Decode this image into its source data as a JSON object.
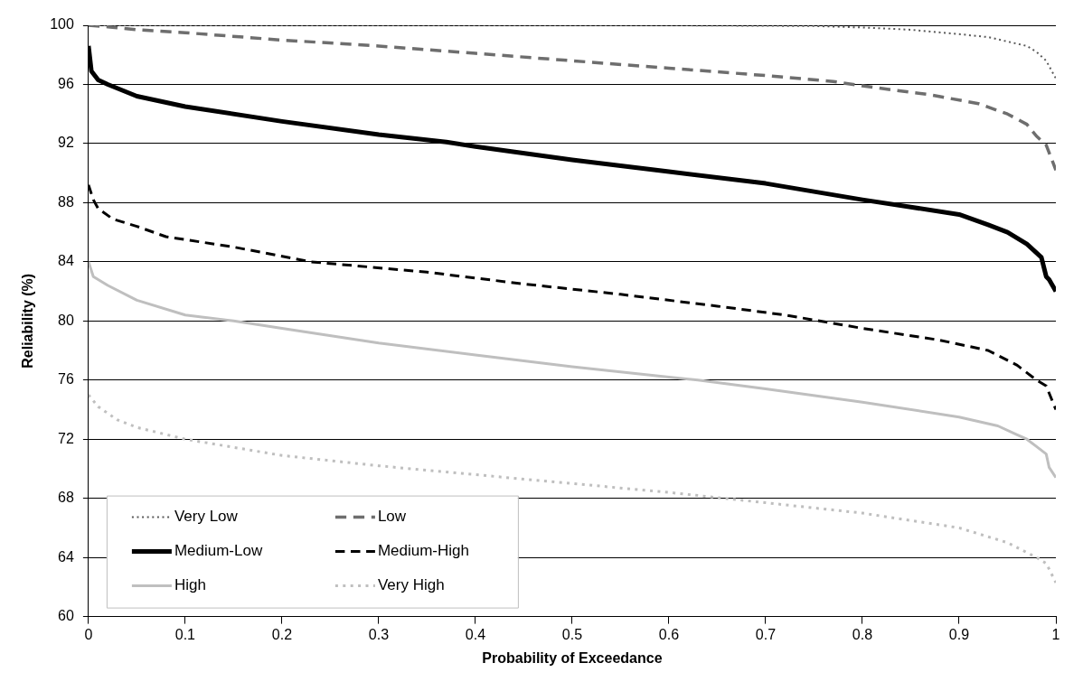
{
  "chart_data": {
    "type": "line",
    "xlabel": "Probability of Exceedance",
    "ylabel": "Reliability (%)",
    "xlim": [
      0,
      1
    ],
    "xticks": [
      0,
      0.1,
      0.2,
      0.3,
      0.4,
      0.5,
      0.6,
      0.7,
      0.8,
      0.9,
      1
    ],
    "ylim": [
      60,
      100
    ],
    "yticks": [
      60,
      64,
      68,
      72,
      76,
      80,
      84,
      88,
      92,
      96,
      100
    ],
    "grid": "y",
    "legend": "bottom left",
    "marker": "none",
    "series": [
      {
        "name": "Very Low",
        "color": "#595959",
        "line_style": "dotted",
        "x": [
          0,
          0.2,
          0.4,
          0.6,
          0.75,
          0.8,
          0.85,
          0.9,
          0.93,
          0.95,
          0.97,
          0.98,
          0.99,
          1
        ],
        "values": [
          100,
          100,
          100,
          100,
          99.95,
          99.85,
          99.7,
          99.4,
          99.2,
          98.9,
          98.6,
          98.2,
          97.6,
          96.4
        ]
      },
      {
        "name": "Low",
        "color": "#6e6e6e",
        "line_style": "dashed",
        "x": [
          0,
          0.02,
          0.05,
          0.1,
          0.2,
          0.3,
          0.4,
          0.5,
          0.6,
          0.7,
          0.77,
          0.8,
          0.87,
          0.92,
          0.95,
          0.97,
          0.98,
          0.99,
          1
        ],
        "values": [
          100,
          99.9,
          99.7,
          99.5,
          99.0,
          98.6,
          98.1,
          97.6,
          97.1,
          96.6,
          96.2,
          95.9,
          95.3,
          94.7,
          94.0,
          93.3,
          92.5,
          91.9,
          90.2
        ]
      },
      {
        "name": "Medium-Low",
        "color": "#000000",
        "line_style": "solid",
        "x": [
          0,
          0.003,
          0.01,
          0.02,
          0.05,
          0.1,
          0.2,
          0.3,
          0.37,
          0.4,
          0.5,
          0.6,
          0.7,
          0.8,
          0.85,
          0.9,
          0.93,
          0.95,
          0.97,
          0.985,
          0.99,
          0.993,
          1
        ],
        "values": [
          98.6,
          96.9,
          96.3,
          96.0,
          95.2,
          94.5,
          93.5,
          92.6,
          92.1,
          91.8,
          90.9,
          90.1,
          89.3,
          88.2,
          87.7,
          87.2,
          86.5,
          86.0,
          85.2,
          84.3,
          83.0,
          82.8,
          82.0
        ]
      },
      {
        "name": "Medium-High",
        "color": "#000000",
        "line_style": "dashed",
        "x": [
          0,
          0.005,
          0.01,
          0.025,
          0.05,
          0.08,
          0.15,
          0.23,
          0.35,
          0.45,
          0.55,
          0.65,
          0.72,
          0.8,
          0.88,
          0.93,
          0.96,
          0.98,
          0.99,
          1
        ],
        "values": [
          89.2,
          88.2,
          87.6,
          86.9,
          86.4,
          85.7,
          85.0,
          84.0,
          83.3,
          82.5,
          81.8,
          81.0,
          80.4,
          79.5,
          78.7,
          78.0,
          77.0,
          76.0,
          75.6,
          74.0
        ]
      },
      {
        "name": "High",
        "color": "#bfbfbf",
        "line_style": "solid",
        "x": [
          0,
          0.005,
          0.02,
          0.05,
          0.1,
          0.15,
          0.2,
          0.3,
          0.4,
          0.5,
          0.6,
          0.63,
          0.7,
          0.8,
          0.9,
          0.94,
          0.96,
          0.97,
          0.98,
          0.99,
          0.993,
          1
        ],
        "values": [
          84.0,
          83.0,
          82.4,
          81.4,
          80.4,
          80.0,
          79.5,
          78.5,
          77.7,
          76.9,
          76.2,
          76.0,
          75.4,
          74.5,
          73.5,
          72.9,
          72.3,
          72.0,
          71.5,
          71.0,
          70.1,
          69.4
        ]
      },
      {
        "name": "Very High",
        "color": "#bfbfbf",
        "line_style": "dotted",
        "x": [
          0,
          0.01,
          0.03,
          0.05,
          0.1,
          0.2,
          0.3,
          0.4,
          0.5,
          0.6,
          0.7,
          0.8,
          0.9,
          0.95,
          0.98,
          0.99,
          1
        ],
        "values": [
          75.0,
          74.2,
          73.3,
          72.8,
          72.0,
          70.9,
          70.2,
          69.6,
          69.0,
          68.4,
          67.7,
          67.0,
          66.0,
          65.0,
          64.0,
          63.6,
          62.3
        ]
      }
    ]
  }
}
